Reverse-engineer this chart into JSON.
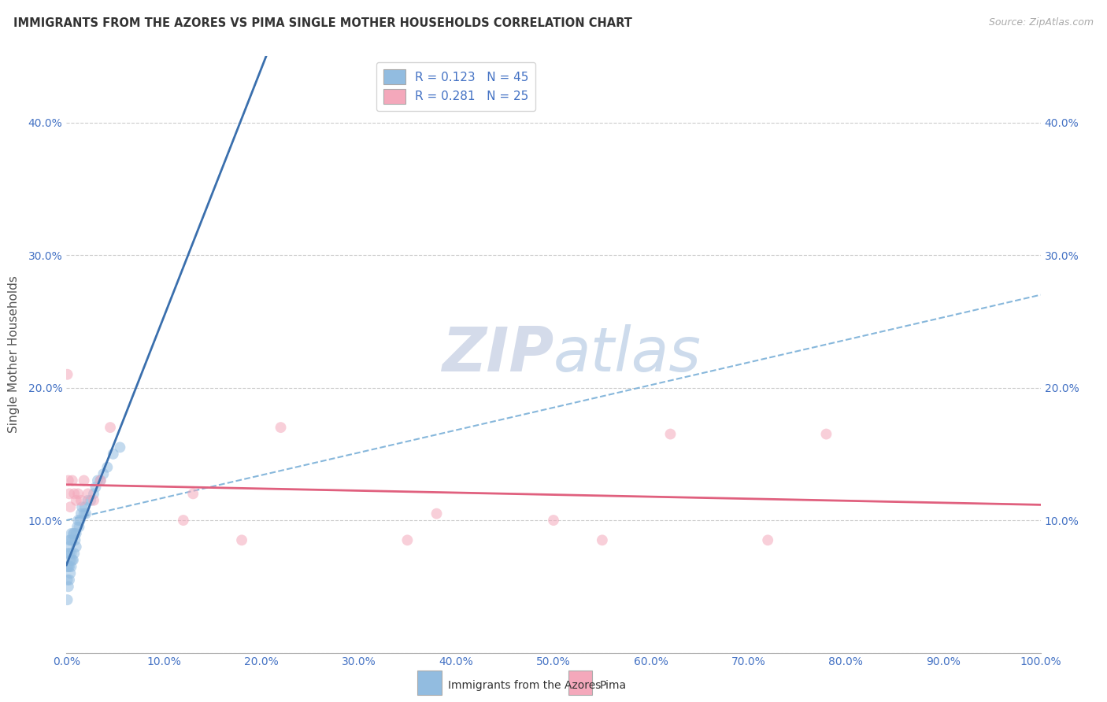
{
  "title": "IMMIGRANTS FROM THE AZORES VS PIMA SINGLE MOTHER HOUSEHOLDS CORRELATION CHART",
  "source": "Source: ZipAtlas.com",
  "ylabel": "Single Mother Households",
  "background_color": "#ffffff",
  "grid_color": "#cccccc",
  "watermark": "ZIPatlas",
  "legend_label1": "R = 0.123   N = 45",
  "legend_label2": "R = 0.281   N = 25",
  "blue_color": "#92bce0",
  "blue_line_color": "#3a6fad",
  "blue_dash_color": "#7ab0d8",
  "pink_color": "#f4a8bb",
  "pink_line_color": "#e0607e",
  "legend_text_color": "#4472c4",
  "tick_color": "#4472c4",
  "blue_scatter_x": [
    0.001,
    0.001,
    0.001,
    0.001,
    0.002,
    0.002,
    0.002,
    0.003,
    0.003,
    0.003,
    0.003,
    0.004,
    0.004,
    0.004,
    0.005,
    0.005,
    0.005,
    0.006,
    0.006,
    0.007,
    0.007,
    0.008,
    0.008,
    0.009,
    0.01,
    0.01,
    0.011,
    0.012,
    0.013,
    0.014,
    0.015,
    0.016,
    0.018,
    0.019,
    0.02,
    0.022,
    0.025,
    0.028,
    0.03,
    0.032,
    0.035,
    0.038,
    0.042,
    0.048,
    0.055
  ],
  "blue_scatter_y": [
    0.04,
    0.055,
    0.065,
    0.075,
    0.05,
    0.065,
    0.08,
    0.055,
    0.065,
    0.075,
    0.085,
    0.06,
    0.07,
    0.085,
    0.065,
    0.075,
    0.09,
    0.07,
    0.085,
    0.07,
    0.09,
    0.075,
    0.09,
    0.085,
    0.08,
    0.09,
    0.095,
    0.1,
    0.095,
    0.1,
    0.105,
    0.11,
    0.105,
    0.11,
    0.105,
    0.115,
    0.115,
    0.12,
    0.125,
    0.13,
    0.13,
    0.135,
    0.14,
    0.15,
    0.155
  ],
  "pink_scatter_x": [
    0.001,
    0.002,
    0.003,
    0.004,
    0.006,
    0.008,
    0.01,
    0.012,
    0.015,
    0.018,
    0.022,
    0.028,
    0.035,
    0.045,
    0.12,
    0.13,
    0.18,
    0.22,
    0.35,
    0.38,
    0.5,
    0.55,
    0.62,
    0.72,
    0.78
  ],
  "pink_scatter_y": [
    0.21,
    0.13,
    0.12,
    0.11,
    0.13,
    0.12,
    0.115,
    0.12,
    0.115,
    0.13,
    0.12,
    0.115,
    0.13,
    0.17,
    0.1,
    0.12,
    0.085,
    0.17,
    0.085,
    0.105,
    0.1,
    0.085,
    0.165,
    0.085,
    0.165
  ],
  "xlim": [
    0.0,
    1.0
  ],
  "ylim": [
    0.0,
    0.45
  ],
  "xticks": [
    0.0,
    0.1,
    0.2,
    0.3,
    0.4,
    0.5,
    0.6,
    0.7,
    0.8,
    0.9,
    1.0
  ],
  "yticks": [
    0.0,
    0.1,
    0.2,
    0.3,
    0.4
  ],
  "ytick_labels_left": [
    "",
    "10.0%",
    "20.0%",
    "30.0%",
    "40.0%"
  ],
  "ytick_labels_right": [
    "",
    "10.0%",
    "20.0%",
    "30.0%",
    "40.0%"
  ],
  "xtick_labels": [
    "0.0%",
    "10.0%",
    "20.0%",
    "30.0%",
    "40.0%",
    "50.0%",
    "60.0%",
    "70.0%",
    "80.0%",
    "90.0%",
    "100.0%"
  ],
  "bottom_label1": "Immigrants from the Azores",
  "bottom_label2": "Pima",
  "marker_size": 100,
  "marker_alpha": 0.55,
  "figsize": [
    14.06,
    8.92
  ],
  "dpi": 100
}
